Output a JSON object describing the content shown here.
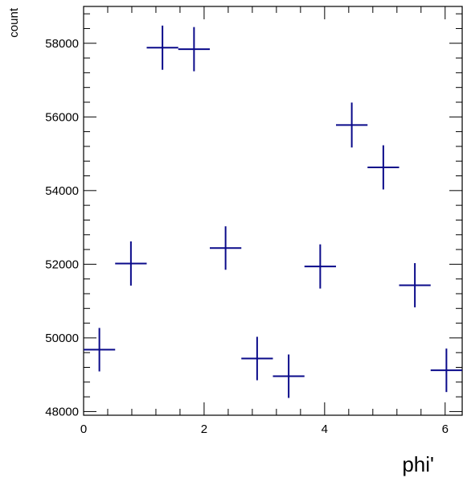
{
  "chart_data": {
    "type": "scatter",
    "title": "",
    "xlabel": "phi'",
    "ylabel": "count",
    "xlim": [
      0,
      6.2832
    ],
    "ylim": [
      47900,
      59000
    ],
    "x_ticks": [
      0,
      2,
      4,
      6
    ],
    "x_tick_labels": [
      "0",
      "2",
      "4",
      "6"
    ],
    "y_ticks": [
      48000,
      50000,
      52000,
      54000,
      56000,
      58000
    ],
    "y_tick_labels": [
      "48000",
      "50000",
      "52000",
      "54000",
      "56000",
      "58000"
    ],
    "x_minor_step": 0.4,
    "y_minor_step": 400,
    "grid": false,
    "legend": "none",
    "marker": "cross-errorbar",
    "colors": {
      "series": "#0a0a8a",
      "axis": "#000000",
      "background": "#ffffff"
    },
    "series": [
      {
        "x": [
          0.2618,
          0.7854,
          1.309,
          1.8326,
          2.3562,
          2.8798,
          3.4034,
          3.927,
          4.4506,
          4.9742,
          5.4978,
          6.0214
        ],
        "y": [
          49680,
          52020,
          57880,
          57840,
          52440,
          49440,
          48960,
          51940,
          55780,
          54630,
          51430,
          49120
        ],
        "y_error": [
          590,
          600,
          600,
          600,
          590,
          590,
          590,
          600,
          610,
          600,
          600,
          590
        ],
        "x_error": 0.2618
      }
    ]
  }
}
